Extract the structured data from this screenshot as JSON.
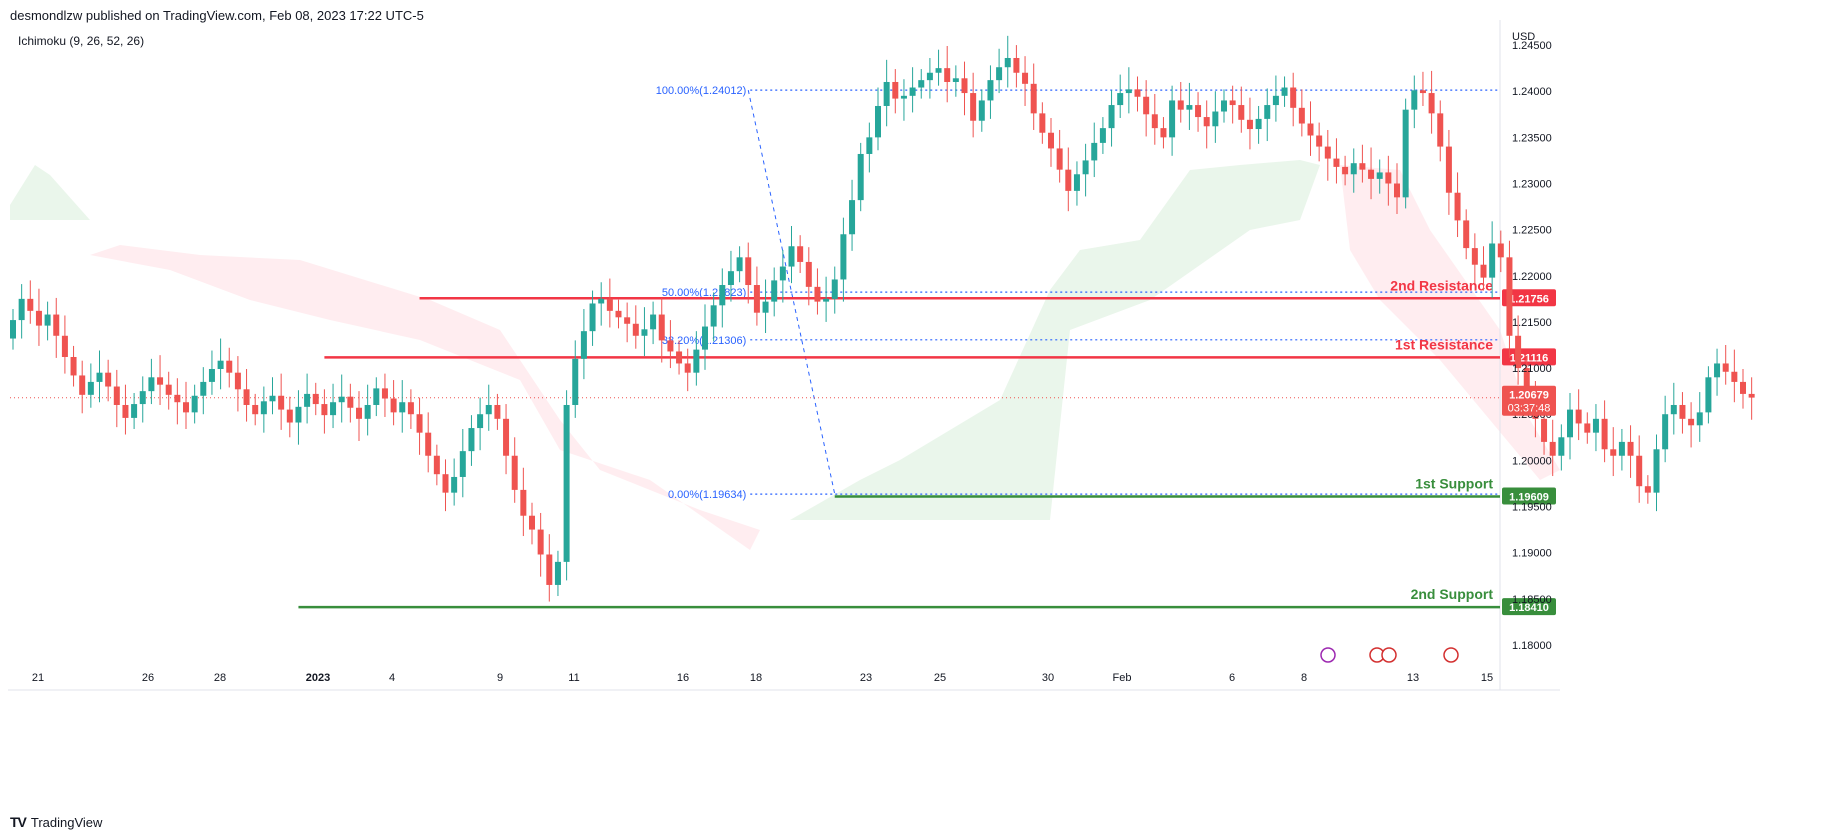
{
  "header": {
    "published": "desmondlzw published on TradingView.com, Feb 08, 2023 17:22 UTC-5"
  },
  "indicator": {
    "label": "Ichimoku (9, 26, 52, 26)"
  },
  "footer": {
    "brand": "TradingView"
  },
  "colors": {
    "up": "#26a69a",
    "down": "#ef5350",
    "resistance": "#f23645",
    "support": "#388e3c",
    "fib": "#2962ff",
    "cloud_bull": "#e8f5e9",
    "cloud_bear": "#ffebee"
  },
  "chart_data": {
    "type": "candlestick",
    "symbol_unit": "USD",
    "y_ticks": [
      "1.24500",
      "1.24000",
      "1.23500",
      "1.23000",
      "1.22500",
      "1.22000",
      "1.21500",
      "1.21000",
      "1.20500",
      "1.20000",
      "1.19500",
      "1.19000",
      "1.18500",
      "1.18000"
    ],
    "ylim": [
      1.1775,
      1.2475
    ],
    "x_ticks": [
      "21",
      "26",
      "28",
      "2023",
      "4",
      "9",
      "11",
      "16",
      "18",
      "23",
      "25",
      "30",
      "Feb",
      "6",
      "8",
      "13",
      "15"
    ],
    "levels": [
      {
        "label": "2nd Resistance",
        "value": 1.21756,
        "value_label": "1.21756",
        "kind": "resistance",
        "from_bar": 47
      },
      {
        "label": "1st Resistance",
        "value": 1.21116,
        "value_label": "1.21116",
        "kind": "resistance",
        "from_bar": 36
      },
      {
        "label": "1st Support",
        "value": 1.19609,
        "value_label": "1.19609",
        "kind": "support",
        "from_bar": 95
      },
      {
        "label": "2nd Support",
        "value": 1.1841,
        "value_label": "1.18410",
        "kind": "support",
        "from_bar": 33
      }
    ],
    "fibonacci": [
      {
        "label": "100.00%(1.24012)",
        "value": 1.24012
      },
      {
        "label": "50.00%(1.21823)",
        "value": 1.21823
      },
      {
        "label": "38.20%(1.21306)",
        "value": 1.21306
      },
      {
        "label": "0.00%(1.19634)",
        "value": 1.19634
      }
    ],
    "fib_start_bar": 85,
    "fib_end_bar": 95,
    "last_price": {
      "value": 1.20679,
      "label": "1.20679",
      "countdown": "03:37:48"
    },
    "bars_per_day": 5,
    "closes": [
      1.2152,
      1.2175,
      1.2162,
      1.2146,
      1.2158,
      1.2135,
      1.2112,
      1.2092,
      1.2071,
      1.2085,
      1.2095,
      1.208,
      1.206,
      1.2046,
      1.2061,
      1.2075,
      1.209,
      1.2082,
      1.2071,
      1.2063,
      1.2052,
      1.207,
      1.2085,
      1.2099,
      1.2108,
      1.2095,
      1.2077,
      1.206,
      1.205,
      1.2064,
      1.207,
      1.2055,
      1.2041,
      1.2058,
      1.2072,
      1.2061,
      1.2049,
      1.2063,
      1.2069,
      1.2057,
      1.2045,
      1.206,
      1.2078,
      1.2067,
      1.2052,
      1.2063,
      1.205,
      1.203,
      1.2005,
      1.1985,
      1.1965,
      1.1982,
      1.201,
      1.2035,
      1.205,
      1.206,
      1.2045,
      1.2005,
      1.1968,
      1.194,
      1.1925,
      1.1898,
      1.1865,
      1.189,
      1.206,
      1.211,
      1.214,
      1.217,
      1.2175,
      1.2162,
      1.2155,
      1.2148,
      1.2135,
      1.2142,
      1.2158,
      1.213,
      1.2118,
      1.2105,
      1.2095,
      1.212,
      1.2145,
      1.2168,
      1.219,
      1.2205,
      1.222,
      1.219,
      1.216,
      1.2172,
      1.2195,
      1.221,
      1.2232,
      1.2215,
      1.2188,
      1.2172,
      1.2175,
      1.2196,
      1.2245,
      1.2282,
      1.2332,
      1.235,
      1.2384,
      1.241,
      1.2392,
      1.2395,
      1.2404,
      1.2412,
      1.242,
      1.2425,
      1.241,
      1.2414,
      1.2398,
      1.2368,
      1.239,
      1.2412,
      1.2426,
      1.2436,
      1.242,
      1.2408,
      1.2376,
      1.2355,
      1.2338,
      1.2315,
      1.2292,
      1.231,
      1.2325,
      1.2344,
      1.236,
      1.2385,
      1.2398,
      1.2402,
      1.2394,
      1.2375,
      1.236,
      1.235,
      1.239,
      1.238,
      1.2385,
      1.2372,
      1.2362,
      1.2378,
      1.239,
      1.2385,
      1.2369,
      1.2359,
      1.237,
      1.2385,
      1.2395,
      1.2404,
      1.2382,
      1.2365,
      1.2352,
      1.234,
      1.2327,
      1.2318,
      1.231,
      1.2322,
      1.2315,
      1.2305,
      1.2312,
      1.23,
      1.2285,
      1.238,
      1.2401,
      1.2398,
      1.2376,
      1.234,
      1.229,
      1.226,
      1.223,
      1.2212,
      1.2198,
      1.2235,
      1.222,
      1.2135,
      1.21,
      1.207,
      1.2045,
      1.202,
      1.2005,
      1.2025,
      1.2055,
      1.204,
      1.203,
      1.2045,
      1.2012,
      1.2005,
      1.202,
      1.2005,
      1.1972,
      1.1965,
      1.2012,
      1.205,
      1.206,
      1.2045,
      1.2038,
      1.2052,
      1.209,
      1.2105,
      1.2096,
      1.2085,
      1.2072,
      1.2068
    ]
  }
}
